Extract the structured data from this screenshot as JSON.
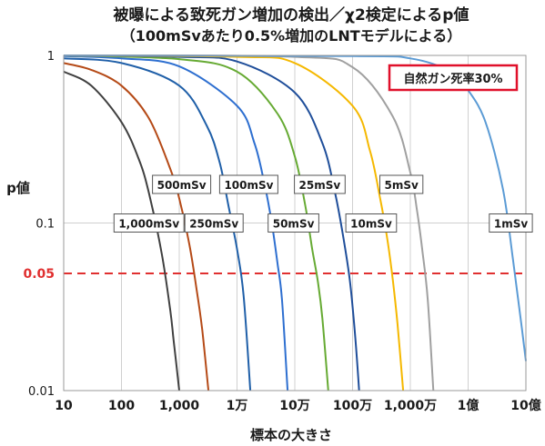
{
  "chart_data": {
    "type": "line",
    "title": "被曝による致死ガン増加の検出／χ2検定によるp値",
    "subtitle": "（100mSvあたり0.5%増加のLNTモデルによる）",
    "xlabel": "標本の大きさ",
    "ylabel": "p値",
    "x_scale": "log",
    "y_scale": "log",
    "xlim": [
      10,
      1000000000
    ],
    "ylim": [
      0.01,
      1
    ],
    "x_ticks": [
      {
        "value": 10,
        "label": "10"
      },
      {
        "value": 100,
        "label": "100"
      },
      {
        "value": 1000,
        "label": "1,000"
      },
      {
        "value": 10000,
        "label": "1万"
      },
      {
        "value": 100000,
        "label": "10万"
      },
      {
        "value": 1000000,
        "label": "100万"
      },
      {
        "value": 10000000,
        "label": "1,000万"
      },
      {
        "value": 100000000,
        "label": "1億"
      },
      {
        "value": 1000000000,
        "label": "10億"
      }
    ],
    "y_ticks": [
      {
        "value": 1,
        "label": "1"
      },
      {
        "value": 0.1,
        "label": "0.1"
      },
      {
        "value": 0.01,
        "label": "0.01"
      }
    ],
    "threshold": {
      "value": 0.05,
      "label": "0.05",
      "color": "#e03030"
    },
    "annotation": "自然ガン死率30%",
    "annotation_color": "#e0102a",
    "grid": true,
    "series": [
      {
        "name": "1,000mSv",
        "color": "#404040",
        "label_x": 300,
        "label_y": 0.1,
        "x": [
          10,
          30,
          100,
          200,
          300,
          500,
          700,
          800,
          1000
        ],
        "y": [
          0.8,
          0.66,
          0.4,
          0.24,
          0.15,
          0.065,
          0.03,
          0.02,
          0.01
        ]
      },
      {
        "name": "500mSv",
        "color": "#b54a17",
        "label_x": 1100,
        "label_y": 0.17,
        "x": [
          10,
          30,
          100,
          300,
          700,
          1000,
          1500,
          2000,
          2500,
          3200
        ],
        "y": [
          0.9,
          0.82,
          0.66,
          0.42,
          0.21,
          0.14,
          0.074,
          0.04,
          0.023,
          0.01
        ]
      },
      {
        "name": "250mSv",
        "color": "#1f5fa8",
        "label_x": 4000,
        "label_y": 0.1,
        "x": [
          10,
          100,
          1000,
          3000,
          5000,
          7000,
          10000,
          13000,
          17000
        ],
        "y": [
          0.96,
          0.9,
          0.66,
          0.38,
          0.23,
          0.13,
          0.07,
          0.037,
          0.01
        ]
      },
      {
        "name": "100mSv",
        "color": "#2e6fd0",
        "label_x": 16000,
        "label_y": 0.17,
        "x": [
          10,
          100,
          1000,
          10000,
          20000,
          30000,
          40000,
          50000,
          60000,
          75000
        ],
        "y": [
          0.99,
          0.96,
          0.86,
          0.5,
          0.3,
          0.17,
          0.1,
          0.058,
          0.035,
          0.01
        ]
      },
      {
        "name": "50mSv",
        "color": "#66aa33",
        "label_x": 95000,
        "label_y": 0.1,
        "x": [
          10,
          1000,
          10000,
          50000,
          100000,
          150000,
          200000,
          250000,
          300000,
          380000
        ],
        "y": [
          1,
          0.95,
          0.8,
          0.45,
          0.25,
          0.13,
          0.07,
          0.045,
          0.027,
          0.01
        ]
      },
      {
        "name": "25mSv",
        "color": "#1f4e9a",
        "label_x": 270000,
        "label_y": 0.17,
        "x": [
          10,
          1000,
          10000,
          100000,
          300000,
          500000,
          700000,
          900000,
          1100000,
          1300000
        ],
        "y": [
          1,
          0.98,
          0.92,
          0.6,
          0.3,
          0.15,
          0.08,
          0.045,
          0.022,
          0.01
        ]
      },
      {
        "name": "10mSv",
        "color": "#f5b800",
        "label_x": 2100000,
        "label_y": 0.1,
        "x": [
          10,
          10000,
          100000,
          1000000,
          2000000,
          3000000,
          4000000,
          5000000,
          6000000,
          7500000
        ],
        "y": [
          1,
          0.98,
          0.9,
          0.5,
          0.27,
          0.14,
          0.08,
          0.045,
          0.025,
          0.01
        ]
      },
      {
        "name": "5mSv",
        "color": "#a0a0a0",
        "label_x": 7000000,
        "label_y": 0.17,
        "x": [
          10,
          100000,
          1000000,
          5000000,
          10000000,
          13000000,
          16000000,
          20000000,
          25000000
        ],
        "y": [
          1,
          0.98,
          0.85,
          0.43,
          0.2,
          0.12,
          0.07,
          0.035,
          0.01
        ]
      },
      {
        "name": "1mSv",
        "color": "#5b9bd5",
        "label_x": 550000000,
        "label_y": 0.1,
        "x": [
          10,
          1000000,
          10000000,
          50000000,
          100000000,
          200000000,
          400000000,
          600000000,
          800000000,
          1000000000
        ],
        "y": [
          1,
          0.99,
          0.96,
          0.8,
          0.62,
          0.4,
          0.16,
          0.06,
          0.028,
          0.015
        ]
      }
    ]
  }
}
